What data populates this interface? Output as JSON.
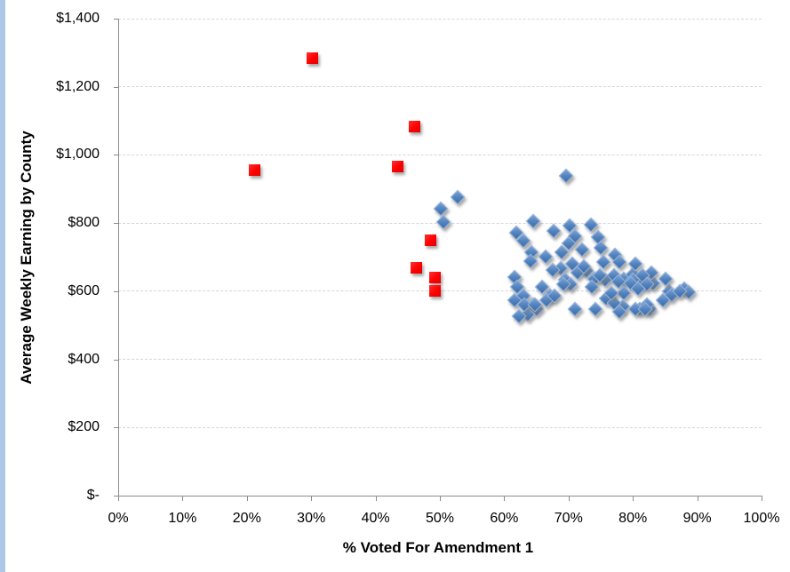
{
  "chart_data": {
    "type": "scatter",
    "title": "",
    "xlabel": "% Voted For Amendment 1",
    "ylabel": "Average Weekly Earning by County",
    "xlim": [
      0,
      100
    ],
    "ylim": [
      0,
      1400
    ],
    "x_tick_values": [
      0,
      10,
      20,
      30,
      40,
      50,
      60,
      70,
      80,
      90,
      100
    ],
    "x_tick_labels": [
      "0%",
      "10%",
      "20%",
      "30%",
      "40%",
      "50%",
      "60%",
      "70%",
      "80%",
      "90%",
      "100%"
    ],
    "y_tick_values": [
      0,
      200,
      400,
      600,
      800,
      1000,
      1200,
      1400
    ],
    "y_tick_labels": [
      "$-",
      "$200",
      "$400",
      "$600",
      "$800",
      "$1,000",
      "$1,200",
      "$1,400"
    ],
    "grid": "horizontal-dashed",
    "legend_position": "none",
    "series": [
      {
        "name": "blue-counties",
        "marker": "diamond",
        "color": "#4F81BD",
        "points": [
          [
            69.5,
            940
          ],
          [
            52.6,
            878
          ],
          [
            50.0,
            845
          ],
          [
            50.4,
            805
          ],
          [
            64.4,
            808
          ],
          [
            61.8,
            775
          ],
          [
            62.9,
            750
          ],
          [
            67.5,
            780
          ],
          [
            70.0,
            795
          ],
          [
            70.8,
            765
          ],
          [
            73.3,
            797
          ],
          [
            74.4,
            760
          ],
          [
            74.8,
            730
          ],
          [
            64.1,
            716
          ],
          [
            66.3,
            705
          ],
          [
            68.8,
            718
          ],
          [
            69.9,
            744
          ],
          [
            72.0,
            726
          ],
          [
            77.1,
            708
          ],
          [
            75.3,
            687
          ],
          [
            70.5,
            682
          ],
          [
            68.6,
            669
          ],
          [
            67.4,
            666
          ],
          [
            72.7,
            661
          ],
          [
            71.3,
            656
          ],
          [
            73.9,
            640
          ],
          [
            69.3,
            635
          ],
          [
            70.2,
            622
          ],
          [
            75.5,
            635
          ],
          [
            76.9,
            649
          ],
          [
            78.5,
            640
          ],
          [
            79.9,
            653
          ],
          [
            81.3,
            630
          ],
          [
            83.0,
            627
          ],
          [
            85.5,
            603
          ],
          [
            87.8,
            609
          ],
          [
            61.5,
            643
          ],
          [
            61.9,
            614
          ],
          [
            62.9,
            588
          ],
          [
            65.8,
            614
          ],
          [
            67.0,
            588
          ],
          [
            64.3,
            564
          ],
          [
            64.9,
            549
          ],
          [
            63.6,
            535
          ],
          [
            69.1,
            622
          ],
          [
            64.0,
            692
          ],
          [
            77.8,
            687
          ],
          [
            80.3,
            682
          ],
          [
            82.7,
            656
          ],
          [
            81.4,
            648
          ],
          [
            79.8,
            635
          ],
          [
            77.6,
            630
          ],
          [
            82.0,
            622
          ],
          [
            85.0,
            640
          ],
          [
            78.5,
            596
          ],
          [
            85.9,
            591
          ],
          [
            88.6,
            600
          ],
          [
            78.3,
            557
          ],
          [
            80.9,
            551
          ],
          [
            82.4,
            549
          ],
          [
            61.5,
            575
          ],
          [
            63.0,
            562
          ],
          [
            64.7,
            564
          ],
          [
            62.2,
            530
          ],
          [
            66.5,
            577
          ],
          [
            67.7,
            590
          ],
          [
            70.9,
            549
          ],
          [
            74.0,
            549
          ],
          [
            75.7,
            582
          ],
          [
            76.9,
            569
          ],
          [
            77.8,
            543
          ],
          [
            80.3,
            549
          ],
          [
            82.0,
            562
          ],
          [
            84.5,
            577
          ],
          [
            87.1,
            601
          ],
          [
            72.3,
            674
          ],
          [
            74.7,
            648
          ],
          [
            76.5,
            596
          ],
          [
            79.5,
            627
          ],
          [
            80.6,
            609
          ],
          [
            81.7,
            551
          ],
          [
            73.5,
            614
          ]
        ]
      },
      {
        "name": "red-counties",
        "marker": "square",
        "color": "#FE0000",
        "points": [
          [
            21.2,
            955
          ],
          [
            30.2,
            1285
          ],
          [
            43.4,
            965
          ],
          [
            46.0,
            1083
          ],
          [
            46.3,
            670
          ],
          [
            48.6,
            750
          ],
          [
            49.2,
            640
          ],
          [
            49.2,
            600
          ]
        ]
      }
    ]
  },
  "colors": {
    "background": "#FFFFFF",
    "edge_strip": "#ACC7E8",
    "gridline": "#D6D6D6",
    "axis_line": "#8C8C8C",
    "text": "#000000",
    "blue_marker": "#4F81BD",
    "red_marker": "#FE0000"
  }
}
